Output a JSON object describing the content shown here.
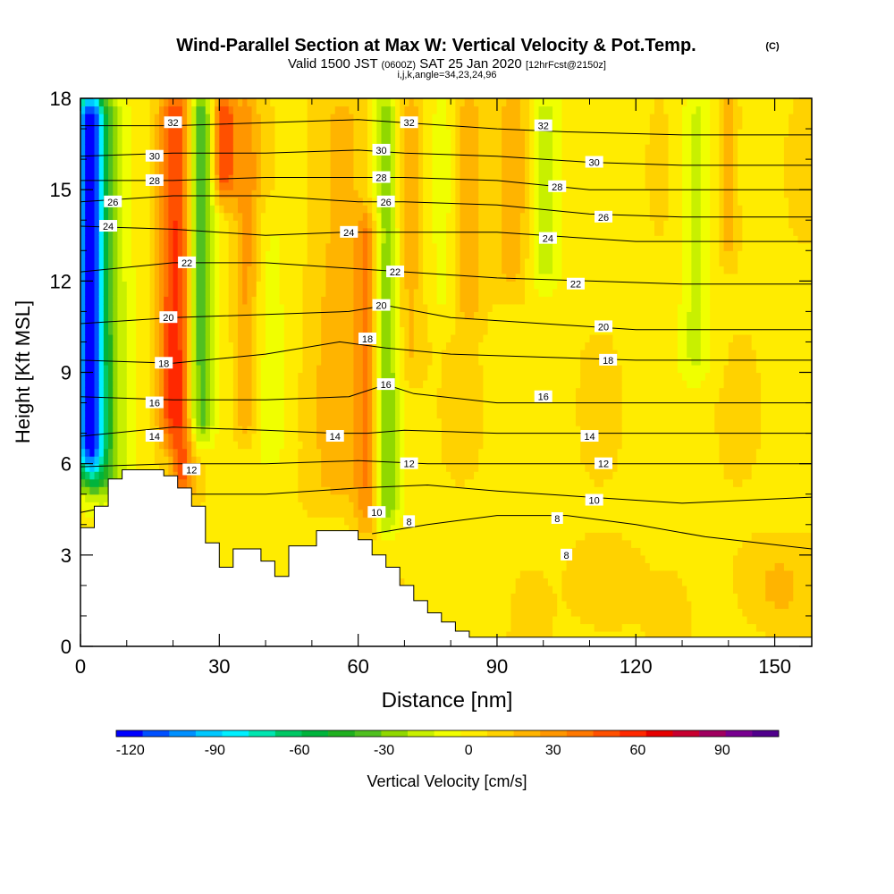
{
  "chart_data": {
    "type": "heatmap",
    "title": "Wind-Parallel Section at Max W: Vertical Velocity & Pot.Temp.",
    "copyright": "(C)",
    "subtitle_main": "Valid 1500 JST",
    "subtitle_z": "(0600Z)",
    "subtitle_date": "SAT 25 Jan 2020",
    "subtitle_fcst": "[12hrFcst@2150z]",
    "subtitle_idx": "i,j,k,angle=34,23,24,96",
    "xlabel": "Distance [nm]",
    "ylabel": "Height [Kft MSL]",
    "xlim": [
      0,
      158
    ],
    "ylim": [
      0,
      18
    ],
    "xticks": [
      0,
      30,
      60,
      90,
      120,
      150
    ],
    "xtick_labels": [
      "0",
      "30",
      "60",
      "90",
      "120",
      "150"
    ],
    "yticks": [
      0,
      3,
      6,
      9,
      12,
      15,
      18
    ],
    "ytick_labels": [
      "0",
      "3",
      "6",
      "9",
      "12",
      "15",
      "18"
    ],
    "colorbar": {
      "label": "Vertical Velocity [cm/s]",
      "min": -125,
      "max": 110,
      "tick_values": [
        -120,
        -90,
        -60,
        -30,
        0,
        30,
        60,
        90
      ],
      "tick_labels": [
        "-120",
        "-90",
        "-60",
        "-30",
        "0",
        "30",
        "60",
        "90"
      ],
      "colors": [
        "#0000ff",
        "#0050ff",
        "#0090ff",
        "#00c8ff",
        "#00f0ff",
        "#00e6b0",
        "#00c864",
        "#00b43c",
        "#20b020",
        "#50c020",
        "#90d800",
        "#c8f000",
        "#f0ff00",
        "#ffec00",
        "#ffd200",
        "#ffb400",
        "#ff9600",
        "#ff7800",
        "#ff5000",
        "#ff2800",
        "#e60000",
        "#c80030",
        "#a00060",
        "#780090",
        "#50008c"
      ]
    },
    "velocity_features": [
      {
        "x": 2,
        "w": 3,
        "z0": 5,
        "z1": 18,
        "v": -95
      },
      {
        "x": 4,
        "w": 6,
        "z0": 4,
        "z1": 18,
        "v": -40
      },
      {
        "x": 19,
        "w": 2.5,
        "z0": 6,
        "z1": 18,
        "v": 35
      },
      {
        "x": 22,
        "w": 2.5,
        "z0": 4,
        "z1": 18,
        "v": 40
      },
      {
        "x": 26,
        "w": 3,
        "z0": 6,
        "z1": 18,
        "v": -45
      },
      {
        "x": 31,
        "w": 2.5,
        "z0": 14,
        "z1": 18,
        "v": 50
      },
      {
        "x": 36,
        "w": 2.5,
        "z0": 6,
        "z1": 18,
        "v": 25
      },
      {
        "x": 41,
        "w": 5,
        "z0": 5,
        "z1": 14,
        "v": -10
      },
      {
        "x": 56,
        "w": 6,
        "z0": 4,
        "z1": 18,
        "v": 15
      },
      {
        "x": 62,
        "w": 2.5,
        "z0": 3,
        "z1": 14,
        "v": 30
      },
      {
        "x": 66,
        "w": 3,
        "z0": 3,
        "z1": 18,
        "v": -35
      },
      {
        "x": 71,
        "w": 3,
        "z0": 8,
        "z1": 18,
        "v": 15
      },
      {
        "x": 78,
        "w": 3,
        "z0": 10,
        "z1": 18,
        "v": -10
      },
      {
        "x": 84,
        "w": 3,
        "z0": 10,
        "z1": 18,
        "v": 20
      },
      {
        "x": 94,
        "w": 4,
        "z0": 11,
        "z1": 18,
        "v": 18
      },
      {
        "x": 100,
        "w": 4,
        "z0": 11,
        "z1": 18,
        "v": -25
      },
      {
        "x": 133,
        "w": 3.5,
        "z0": 8,
        "z1": 18,
        "v": -20
      },
      {
        "x": 140,
        "w": 2,
        "z0": 12,
        "z1": 18,
        "v": 20
      },
      {
        "x": 113,
        "w": 6,
        "z0": 0,
        "z1": 3,
        "v": 12
      },
      {
        "x": 150,
        "w": 8,
        "z0": 0,
        "z1": 3,
        "v": 12
      }
    ],
    "terrain": [
      [
        0,
        3.9
      ],
      [
        3,
        3.9
      ],
      [
        3,
        4.6
      ],
      [
        6,
        4.6
      ],
      [
        6,
        5.5
      ],
      [
        9,
        5.5
      ],
      [
        9,
        5.8
      ],
      [
        18,
        5.8
      ],
      [
        18,
        5.6
      ],
      [
        21,
        5.6
      ],
      [
        21,
        5.2
      ],
      [
        24,
        5.2
      ],
      [
        24,
        4.6
      ],
      [
        27,
        4.6
      ],
      [
        27,
        3.4
      ],
      [
        30,
        3.4
      ],
      [
        30,
        2.6
      ],
      [
        33,
        2.6
      ],
      [
        33,
        3.2
      ],
      [
        39,
        3.2
      ],
      [
        39,
        2.8
      ],
      [
        42,
        2.8
      ],
      [
        42,
        2.3
      ],
      [
        45,
        2.3
      ],
      [
        45,
        3.3
      ],
      [
        51,
        3.3
      ],
      [
        51,
        3.8
      ],
      [
        57,
        3.8
      ],
      [
        57,
        3.8
      ],
      [
        60,
        3.8
      ],
      [
        60,
        3.5
      ],
      [
        63,
        3.5
      ],
      [
        63,
        3.0
      ],
      [
        66,
        3.0
      ],
      [
        66,
        2.6
      ],
      [
        69,
        2.6
      ],
      [
        69,
        2.0
      ],
      [
        72,
        2.0
      ],
      [
        72,
        1.5
      ],
      [
        75,
        1.5
      ],
      [
        75,
        1.1
      ],
      [
        78,
        1.1
      ],
      [
        78,
        0.8
      ],
      [
        81,
        0.8
      ],
      [
        81,
        0.5
      ],
      [
        84,
        0.5
      ],
      [
        84,
        0.3
      ],
      [
        87,
        0.3
      ],
      [
        158,
        0.3
      ]
    ],
    "theta_contours": [
      {
        "label": "8",
        "pts": [
          [
            63,
            3.7
          ],
          [
            75,
            4.0
          ],
          [
            90,
            4.3
          ],
          [
            105,
            4.3
          ],
          [
            120,
            4.0
          ],
          [
            135,
            3.6
          ],
          [
            158,
            3.2
          ]
        ],
        "labels": [
          [
            71,
            4.1
          ],
          [
            103,
            4.2
          ],
          [
            105,
            3.0
          ]
        ]
      },
      {
        "label": "10",
        "pts": [
          [
            0,
            4.4
          ],
          [
            20,
            5.0
          ],
          [
            40,
            5.0
          ],
          [
            60,
            5.2
          ],
          [
            75,
            5.3
          ],
          [
            90,
            5.1
          ],
          [
            110,
            4.9
          ],
          [
            130,
            4.7
          ],
          [
            158,
            4.9
          ]
        ],
        "labels": [
          [
            64,
            4.4
          ],
          [
            111,
            4.8
          ]
        ]
      },
      {
        "label": "12",
        "pts": [
          [
            0,
            5.9
          ],
          [
            20,
            6.0
          ],
          [
            40,
            6.0
          ],
          [
            60,
            6.1
          ],
          [
            75,
            6.0
          ],
          [
            95,
            6.0
          ],
          [
            115,
            6.0
          ],
          [
            135,
            6.0
          ],
          [
            158,
            6.0
          ]
        ],
        "labels": [
          [
            24,
            5.8
          ],
          [
            71,
            6.0
          ],
          [
            113,
            6.0
          ]
        ]
      },
      {
        "label": "14",
        "pts": [
          [
            0,
            6.9
          ],
          [
            20,
            7.2
          ],
          [
            40,
            7.1
          ],
          [
            55,
            7.0
          ],
          [
            62,
            7.0
          ],
          [
            70,
            7.1
          ],
          [
            90,
            7.0
          ],
          [
            115,
            7.0
          ],
          [
            135,
            7.0
          ],
          [
            158,
            7.0
          ]
        ],
        "labels": [
          [
            16,
            6.9
          ],
          [
            55,
            6.9
          ],
          [
            110,
            6.9
          ]
        ]
      },
      {
        "label": "16",
        "pts": [
          [
            0,
            8.2
          ],
          [
            20,
            8.1
          ],
          [
            40,
            8.1
          ],
          [
            58,
            8.2
          ],
          [
            66,
            8.6
          ],
          [
            72,
            8.3
          ],
          [
            90,
            8.0
          ],
          [
            115,
            8.0
          ],
          [
            135,
            8.0
          ],
          [
            158,
            8.0
          ]
        ],
        "labels": [
          [
            16,
            8.0
          ],
          [
            66,
            8.6
          ],
          [
            100,
            8.2
          ]
        ]
      },
      {
        "label": "18",
        "pts": [
          [
            0,
            9.4
          ],
          [
            20,
            9.3
          ],
          [
            40,
            9.6
          ],
          [
            56,
            10.0
          ],
          [
            66,
            9.8
          ],
          [
            80,
            9.6
          ],
          [
            100,
            9.5
          ],
          [
            120,
            9.4
          ],
          [
            140,
            9.4
          ],
          [
            158,
            9.4
          ]
        ],
        "labels": [
          [
            18,
            9.3
          ],
          [
            62,
            10.1
          ],
          [
            114,
            9.4
          ]
        ]
      },
      {
        "label": "20",
        "pts": [
          [
            0,
            10.6
          ],
          [
            20,
            10.8
          ],
          [
            40,
            10.9
          ],
          [
            58,
            11.0
          ],
          [
            66,
            11.2
          ],
          [
            80,
            10.8
          ],
          [
            100,
            10.6
          ],
          [
            120,
            10.4
          ],
          [
            140,
            10.4
          ],
          [
            158,
            10.4
          ]
        ],
        "labels": [
          [
            19,
            10.8
          ],
          [
            65,
            11.2
          ],
          [
            113,
            10.5
          ]
        ]
      },
      {
        "label": "22",
        "pts": [
          [
            0,
            12.3
          ],
          [
            20,
            12.6
          ],
          [
            40,
            12.6
          ],
          [
            60,
            12.4
          ],
          [
            70,
            12.3
          ],
          [
            90,
            12.1
          ],
          [
            110,
            12.0
          ],
          [
            130,
            11.9
          ],
          [
            158,
            11.9
          ]
        ],
        "labels": [
          [
            23,
            12.6
          ],
          [
            68,
            12.3
          ],
          [
            107,
            11.9
          ]
        ]
      },
      {
        "label": "24",
        "pts": [
          [
            0,
            13.8
          ],
          [
            20,
            13.7
          ],
          [
            40,
            13.5
          ],
          [
            57,
            13.6
          ],
          [
            70,
            13.6
          ],
          [
            90,
            13.6
          ],
          [
            100,
            13.5
          ],
          [
            120,
            13.3
          ],
          [
            158,
            13.3
          ]
        ],
        "labels": [
          [
            6,
            13.8
          ],
          [
            58,
            13.6
          ],
          [
            101,
            13.4
          ]
        ]
      },
      {
        "label": "26",
        "pts": [
          [
            0,
            14.6
          ],
          [
            20,
            14.8
          ],
          [
            40,
            14.8
          ],
          [
            60,
            14.6
          ],
          [
            70,
            14.6
          ],
          [
            90,
            14.5
          ],
          [
            110,
            14.2
          ],
          [
            130,
            14.1
          ],
          [
            158,
            14.1
          ]
        ],
        "labels": [
          [
            7,
            14.6
          ],
          [
            66,
            14.6
          ],
          [
            113,
            14.1
          ]
        ]
      },
      {
        "label": "28",
        "pts": [
          [
            0,
            15.3
          ],
          [
            20,
            15.3
          ],
          [
            40,
            15.4
          ],
          [
            60,
            15.4
          ],
          [
            70,
            15.4
          ],
          [
            90,
            15.3
          ],
          [
            110,
            15.0
          ],
          [
            130,
            15.0
          ],
          [
            158,
            15.0
          ]
        ],
        "labels": [
          [
            16,
            15.3
          ],
          [
            65,
            15.4
          ],
          [
            103,
            15.1
          ]
        ]
      },
      {
        "label": "30",
        "pts": [
          [
            0,
            16.1
          ],
          [
            20,
            16.2
          ],
          [
            40,
            16.2
          ],
          [
            60,
            16.3
          ],
          [
            70,
            16.2
          ],
          [
            90,
            16.1
          ],
          [
            110,
            15.9
          ],
          [
            130,
            15.8
          ],
          [
            158,
            15.8
          ]
        ],
        "labels": [
          [
            16,
            16.1
          ],
          [
            65,
            16.3
          ],
          [
            111,
            15.9
          ]
        ]
      },
      {
        "label": "32",
        "pts": [
          [
            0,
            17.1
          ],
          [
            20,
            17.1
          ],
          [
            40,
            17.2
          ],
          [
            60,
            17.3
          ],
          [
            70,
            17.2
          ],
          [
            90,
            17.0
          ],
          [
            105,
            16.9
          ],
          [
            130,
            16.8
          ],
          [
            158,
            16.8
          ]
        ],
        "labels": [
          [
            20,
            17.2
          ],
          [
            71,
            17.2
          ],
          [
            100,
            17.1
          ]
        ]
      }
    ]
  }
}
